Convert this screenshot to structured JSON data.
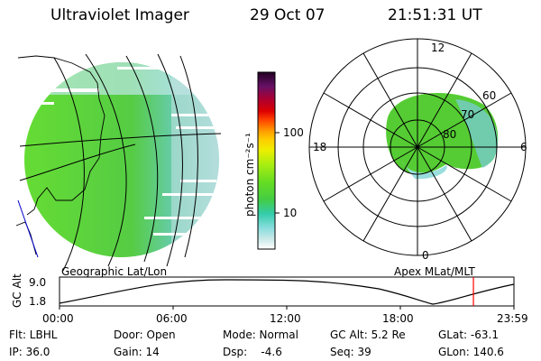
{
  "header": {
    "instrument": "Ultraviolet Imager",
    "date": "29 Oct 07",
    "time": "21:51:31 UT"
  },
  "colorbar": {
    "unit": "photon cm⁻²s⁻¹",
    "ticks": [
      "100",
      "10"
    ]
  },
  "maps": {
    "left_label": "Geographic Lat/Lon",
    "right_label": "Apex MLat/MLT"
  },
  "polar_labels": {
    "top": "12",
    "bottom": "0",
    "left": "18",
    "right": "6",
    "lat_60": "60",
    "lat_70": "70",
    "lat_80": "80"
  },
  "timeline": {
    "ylabel": "GC Alt",
    "y_top": "9.0",
    "y_bottom": "1.8",
    "x_ticks": [
      "00:00",
      "06:00",
      "12:00",
      "18:00",
      "23:59"
    ],
    "current_time_hours": 21.86
  },
  "info": {
    "flt": "Flt: LBHL",
    "ip": "IP: 36.0",
    "door": "Door: Open",
    "gain": "Gain: 14",
    "mode": "Mode: Normal",
    "dsp": "Dsp:    -4.6",
    "gcalt": "GC Alt: 5.2 Re",
    "seq": "Seq: 39",
    "glat": "GLat: -63.1",
    "glon": "GLon: 140.6"
  },
  "colors": {
    "marker": "#ff0000",
    "grid": "#000000",
    "coast_accent": "#0000cc"
  }
}
